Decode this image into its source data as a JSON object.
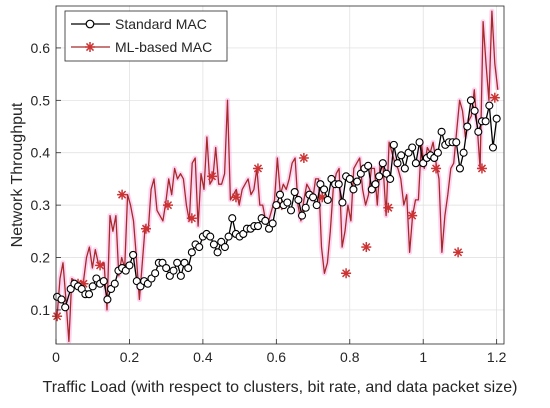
{
  "chart_data": {
    "type": "line",
    "xlabel": "Traffic Load (with respect to clusters, bit rate, and data packet size)",
    "ylabel": "Network Throughput",
    "xlim": [
      0,
      1.22
    ],
    "ylim": [
      0.035,
      0.68
    ],
    "xticks": [
      0,
      0.2,
      0.4,
      0.6,
      0.8,
      1,
      1.2
    ],
    "xtick_labels": [
      "0",
      "0.2",
      "0.4",
      "0.6",
      "0.8",
      "1",
      "1.2"
    ],
    "yticks": [
      0.1,
      0.2,
      0.3,
      0.4,
      0.5,
      0.6
    ],
    "ytick_labels": [
      "0.1",
      "0.2",
      "0.3",
      "0.4",
      "0.5",
      "0.6"
    ],
    "grid": true,
    "legend_position": "top-left",
    "colors": {
      "standard": "#000000",
      "ml": "#a52a2a",
      "ml_marker": "#cc3333",
      "shadow": "#ff66cc"
    },
    "series": [
      {
        "name": "Standard MAC",
        "marker": "circle",
        "x": [
          0.003,
          0.015,
          0.025,
          0.04,
          0.05,
          0.06,
          0.07,
          0.08,
          0.09,
          0.1,
          0.11,
          0.12,
          0.13,
          0.14,
          0.15,
          0.16,
          0.17,
          0.18,
          0.19,
          0.2,
          0.21,
          0.22,
          0.23,
          0.24,
          0.25,
          0.26,
          0.27,
          0.28,
          0.29,
          0.3,
          0.31,
          0.32,
          0.33,
          0.34,
          0.35,
          0.36,
          0.37,
          0.38,
          0.39,
          0.4,
          0.41,
          0.42,
          0.43,
          0.44,
          0.45,
          0.46,
          0.47,
          0.48,
          0.49,
          0.5,
          0.51,
          0.52,
          0.53,
          0.54,
          0.55,
          0.56,
          0.57,
          0.58,
          0.59,
          0.6,
          0.61,
          0.62,
          0.63,
          0.64,
          0.65,
          0.66,
          0.67,
          0.68,
          0.69,
          0.7,
          0.71,
          0.72,
          0.73,
          0.74,
          0.75,
          0.76,
          0.77,
          0.78,
          0.79,
          0.8,
          0.81,
          0.82,
          0.83,
          0.84,
          0.85,
          0.86,
          0.87,
          0.88,
          0.89,
          0.9,
          0.91,
          0.92,
          0.93,
          0.94,
          0.95,
          0.96,
          0.97,
          0.98,
          0.99,
          1.0,
          1.01,
          1.02,
          1.03,
          1.04,
          1.05,
          1.06,
          1.07,
          1.08,
          1.09,
          1.1,
          1.11,
          1.12,
          1.13,
          1.14,
          1.15,
          1.16,
          1.17,
          1.18,
          1.19,
          1.2
        ],
        "y": [
          0.125,
          0.12,
          0.105,
          0.14,
          0.15,
          0.145,
          0.14,
          0.13,
          0.13,
          0.145,
          0.16,
          0.15,
          0.155,
          0.12,
          0.14,
          0.15,
          0.175,
          0.18,
          0.175,
          0.185,
          0.205,
          0.155,
          0.145,
          0.155,
          0.15,
          0.16,
          0.17,
          0.19,
          0.19,
          0.18,
          0.165,
          0.175,
          0.19,
          0.165,
          0.19,
          0.18,
          0.21,
          0.225,
          0.22,
          0.24,
          0.245,
          0.24,
          0.225,
          0.21,
          0.23,
          0.22,
          0.24,
          0.275,
          0.245,
          0.24,
          0.245,
          0.255,
          0.255,
          0.26,
          0.26,
          0.275,
          0.27,
          0.255,
          0.265,
          0.3,
          0.32,
          0.3,
          0.305,
          0.29,
          0.325,
          0.31,
          0.28,
          0.295,
          0.32,
          0.315,
          0.3,
          0.34,
          0.33,
          0.31,
          0.35,
          0.34,
          0.34,
          0.305,
          0.355,
          0.35,
          0.33,
          0.345,
          0.36,
          0.37,
          0.375,
          0.33,
          0.34,
          0.355,
          0.38,
          0.36,
          0.35,
          0.415,
          0.38,
          0.395,
          0.37,
          0.4,
          0.41,
          0.38,
          0.42,
          0.38,
          0.39,
          0.395,
          0.39,
          0.4,
          0.44,
          0.415,
          0.42,
          0.42,
          0.42,
          0.37,
          0.4,
          0.45,
          0.5,
          0.48,
          0.44,
          0.46,
          0.46,
          0.49,
          0.41,
          0.465
        ]
      },
      {
        "name": "ML-based MAC",
        "marker": "asterisk",
        "x": [
          0.003,
          0.011,
          0.019,
          0.027,
          0.035,
          0.043,
          0.051,
          0.059,
          0.067,
          0.075,
          0.083,
          0.091,
          0.099,
          0.107,
          0.115,
          0.123,
          0.131,
          0.139,
          0.147,
          0.155,
          0.163,
          0.171,
          0.179,
          0.187,
          0.195,
          0.203,
          0.211,
          0.219,
          0.227,
          0.235,
          0.243,
          0.251,
          0.259,
          0.267,
          0.275,
          0.283,
          0.291,
          0.299,
          0.307,
          0.315,
          0.323,
          0.331,
          0.339,
          0.347,
          0.355,
          0.363,
          0.371,
          0.379,
          0.387,
          0.395,
          0.403,
          0.411,
          0.419,
          0.427,
          0.435,
          0.443,
          0.451,
          0.459,
          0.467,
          0.475,
          0.483,
          0.491,
          0.499,
          0.507,
          0.515,
          0.523,
          0.531,
          0.539,
          0.547,
          0.555,
          0.563,
          0.571,
          0.579,
          0.587,
          0.595,
          0.603,
          0.611,
          0.619,
          0.627,
          0.635,
          0.643,
          0.651,
          0.659,
          0.667,
          0.675,
          0.683,
          0.691,
          0.699,
          0.707,
          0.715,
          0.723,
          0.731,
          0.739,
          0.747,
          0.755,
          0.763,
          0.771,
          0.779,
          0.787,
          0.795,
          0.803,
          0.811,
          0.819,
          0.827,
          0.835,
          0.843,
          0.851,
          0.859,
          0.867,
          0.875,
          0.883,
          0.891,
          0.899,
          0.907,
          0.915,
          0.923,
          0.931,
          0.939,
          0.947,
          0.955,
          0.963,
          0.971,
          0.979,
          0.987,
          0.995,
          1.003,
          1.011,
          1.019,
          1.027,
          1.035,
          1.043,
          1.051,
          1.059,
          1.067,
          1.075,
          1.083,
          1.091,
          1.099,
          1.107,
          1.115,
          1.123,
          1.131,
          1.139,
          1.147,
          1.155,
          1.163,
          1.171,
          1.179,
          1.187,
          1.195,
          1.203
        ],
        "y": [
          0.088,
          0.16,
          0.19,
          0.12,
          0.04,
          0.16,
          0.155,
          0.145,
          0.15,
          0.155,
          0.2,
          0.22,
          0.18,
          0.215,
          0.19,
          0.185,
          0.19,
          0.1,
          0.28,
          0.25,
          0.28,
          0.165,
          0.2,
          0.18,
          0.32,
          0.3,
          0.27,
          0.2,
          0.12,
          0.19,
          0.26,
          0.25,
          0.33,
          0.35,
          0.29,
          0.28,
          0.27,
          0.305,
          0.35,
          0.32,
          0.37,
          0.35,
          0.36,
          0.35,
          0.3,
          0.27,
          0.38,
          0.39,
          0.26,
          0.36,
          0.33,
          0.43,
          0.34,
          0.35,
          0.41,
          0.34,
          0.34,
          0.36,
          0.5,
          0.31,
          0.32,
          0.33,
          0.3,
          0.33,
          0.34,
          0.35,
          0.32,
          0.33,
          0.37,
          0.3,
          0.3,
          0.27,
          0.27,
          0.29,
          0.31,
          0.39,
          0.32,
          0.34,
          0.33,
          0.35,
          0.38,
          0.39,
          0.3,
          0.27,
          0.31,
          0.34,
          0.33,
          0.31,
          0.35,
          0.35,
          0.22,
          0.17,
          0.19,
          0.25,
          0.33,
          0.36,
          0.37,
          0.22,
          0.25,
          0.3,
          0.27,
          0.37,
          0.38,
          0.39,
          0.33,
          0.3,
          0.32,
          0.37,
          0.37,
          0.3,
          0.38,
          0.37,
          0.28,
          0.42,
          0.4,
          0.38,
          0.37,
          0.35,
          0.3,
          0.32,
          0.21,
          0.28,
          0.31,
          0.31,
          0.42,
          0.37,
          0.41,
          0.4,
          0.42,
          0.38,
          0.35,
          0.21,
          0.28,
          0.32,
          0.37,
          0.38,
          0.44,
          0.5,
          0.48,
          0.43,
          0.46,
          0.47,
          0.52,
          0.45,
          0.37,
          0.65,
          0.57,
          0.5,
          0.67,
          0.57,
          0.52
        ],
        "marker_points": [
          [
            0.003,
            0.088
          ],
          [
            0.06,
            0.15
          ],
          [
            0.075,
            0.15
          ],
          [
            0.12,
            0.185
          ],
          [
            0.18,
            0.32
          ],
          [
            0.245,
            0.255
          ],
          [
            0.305,
            0.3
          ],
          [
            0.37,
            0.275
          ],
          [
            0.425,
            0.355
          ],
          [
            0.49,
            0.315
          ],
          [
            0.55,
            0.37
          ],
          [
            0.615,
            0.3
          ],
          [
            0.675,
            0.39
          ],
          [
            0.725,
            0.315
          ],
          [
            0.79,
            0.17
          ],
          [
            0.845,
            0.22
          ],
          [
            0.905,
            0.295
          ],
          [
            0.97,
            0.28
          ],
          [
            1.035,
            0.37
          ],
          [
            1.095,
            0.21
          ],
          [
            1.16,
            0.37
          ],
          [
            1.195,
            0.505
          ]
        ]
      }
    ]
  }
}
